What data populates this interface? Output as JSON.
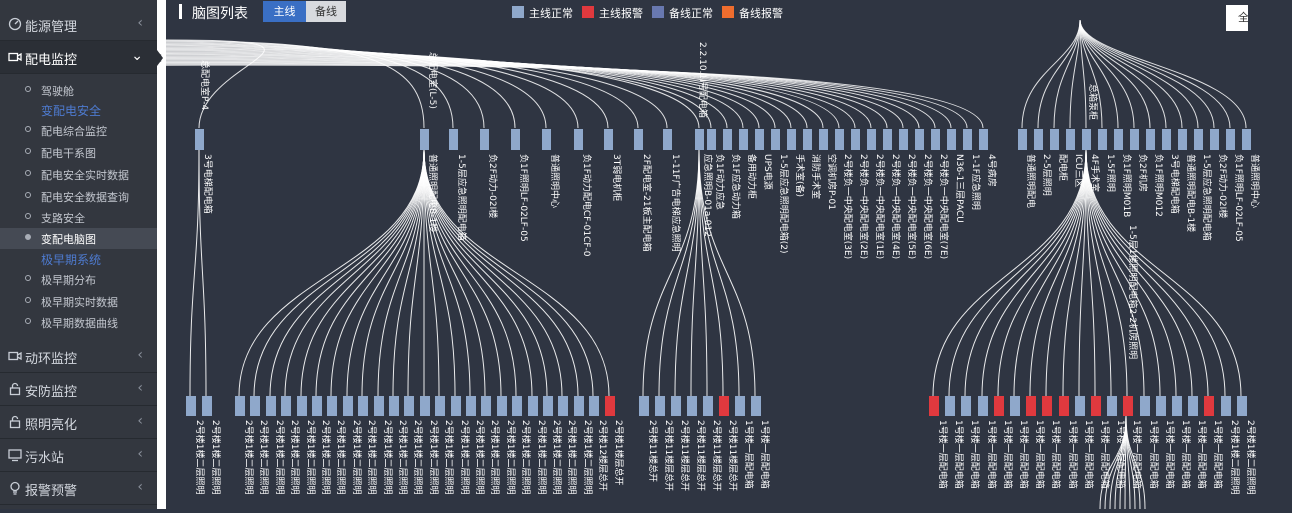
{
  "sidebar": {
    "items": [
      {
        "label": "能源管理",
        "icon": "gauge-icon",
        "expanded": false
      },
      {
        "label": "配电监控",
        "icon": "camera-icon",
        "expanded": true
      },
      {
        "label": "动环监控",
        "icon": "camera-icon",
        "expanded": false
      },
      {
        "label": "安防监控",
        "icon": "lock-icon",
        "expanded": false
      },
      {
        "label": "照明亮化",
        "icon": "lock-icon",
        "expanded": false
      },
      {
        "label": "污水站",
        "icon": "monitor-icon",
        "expanded": false
      },
      {
        "label": "报警预警",
        "icon": "bulb-icon",
        "expanded": false
      }
    ],
    "submenu": {
      "cockpit": "驾驶舱",
      "group1": "变配电安全",
      "g1_items": [
        "配电综合监控",
        "配电干系图",
        "配电安全实时数据",
        "配电安全数据查询",
        "支路安全",
        "变配电脑图"
      ],
      "group2": "极早期系统",
      "g2_items": [
        "极早期分布",
        "极早期实时数据",
        "极早期数据曲线"
      ],
      "selected": "变配电脑图"
    }
  },
  "header": {
    "title": "脑图列表",
    "tabs": [
      "主线",
      "备线"
    ],
    "active_tab": "主线",
    "fullscreen_label": "全屏"
  },
  "legend": [
    {
      "label": "主线正常",
      "color": "#8fa8cb"
    },
    {
      "label": "主线报警",
      "color": "#e0393e"
    },
    {
      "label": "备线正常",
      "color": "#6878b0"
    },
    {
      "label": "备线报警",
      "color": "#ef6d2e"
    }
  ],
  "tree": {
    "root_labels": [
      "总配电室P-4",
      "总配电室(L-5)",
      "2.2.10.1I号配电箱",
      "总箱泵柜"
    ],
    "mid_labels": [
      "3号电梯配电箱",
      "普通照明配电B-1楼",
      "1-5层应急照明配电箱",
      "负2F动力-02I楼",
      "负1F照明LF-02LF-05",
      "普通照明中心",
      "负1F动力配电CF-01CF-09",
      "3T弱电机柜",
      "2F配电室-21板主配电箱",
      "1-11F广告电梯应急照明",
      "应急照明B-01a-012",
      "负1F动力应急",
      "负1F应急动力箱",
      "备用动力柜",
      "UPS电源",
      "1-5层应急照明配电箱(2)",
      "手术室(备)",
      "消防手术室",
      "空调机房P-01",
      "2号楼负一中央配电室(3E)",
      "2号楼负一中央配电室(2E)",
      "2号楼负一中央配电室(1E)",
      "2号楼负一中央配电室(4E)",
      "2号楼负一中央配电室(5E)",
      "2号楼负一中央配电室(6E)",
      "2号楼负一中央配电室(7E)",
      "N36-1三层PACU",
      "1-1F应急照明",
      "4号病房",
      "普通照明配电",
      "2-5层照明",
      "配电柜",
      "ICU三区",
      "4F手术室",
      "1-5F照明",
      "负1F照明M01B",
      "负2F机房",
      "负1F照明M012"
    ],
    "leaf_labels": [
      "2号楼1楼二层照明",
      "2号楼1楼二层照明",
      "2号楼1楼二层照明",
      "2号楼1楼二层照明",
      "2号楼1楼二层照明",
      "2号楼1楼二层照明",
      "2号楼1楼二层照明",
      "2号楼1楼二层照明",
      "2号楼1楼二层照明",
      "2号楼1楼二层照明",
      "2号楼1楼二层照明",
      "2号楼1楼二层照明",
      "2号楼1楼二层照明",
      "2号楼1楼二层照明",
      "2号楼1楼二层照明",
      "2号楼1楼二层照明",
      "2号楼1楼二层照明",
      "2号楼1楼二层照明",
      "2号楼1楼二层照明",
      "2号楼1楼二层照明",
      "2号楼1楼二层照明",
      "2号楼1楼二层照明",
      "2号楼1楼二层照明",
      "2号楼1楼二层照明",
      "2号楼1楼二层照明",
      "2号楼12楼层总开",
      "2号楼1楼层总开",
      "2号楼11楼总开",
      "2号楼11楼层总开",
      "2号楼11楼层总开",
      "2号楼11楼层总开",
      "2号楼11楼层总开",
      "2号楼11楼层总开",
      "1号楼一层配电箱",
      "1号楼一层配电箱",
      "1号楼一层配电箱",
      "1号楼一层配电箱",
      "1号楼一层配电箱",
      "1号楼一层配电箱",
      "1号楼一层配电箱",
      "1号楼一层配电箱",
      "1号楼一层配电箱",
      "1号楼一层配电箱",
      "1号楼一层配电箱",
      "1号楼一层配电箱",
      "1号楼一层配电箱",
      "1号楼一层配电箱",
      "1号楼一层配电箱",
      "1号楼一层配电箱",
      "1号楼一层配电箱",
      "1号楼一层配电箱",
      "1号楼一层配电箱",
      "1号楼一层配电箱"
    ],
    "leaf_alarm_indices": [
      26,
      32,
      35,
      39,
      41,
      42,
      43,
      45,
      47,
      52
    ],
    "extra_label": "1-5层1楼照明配电箱2-2机房照明"
  },
  "colors": {
    "normal": "#8fa8cb",
    "alarm": "#e0393e",
    "accent": "#3a6fc4"
  }
}
